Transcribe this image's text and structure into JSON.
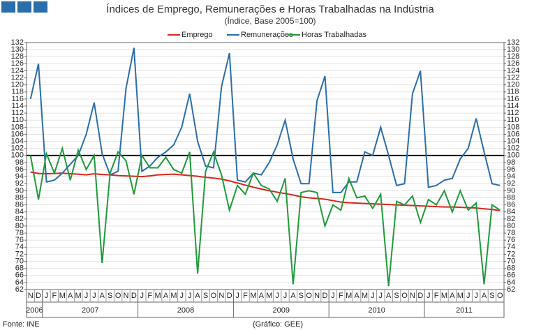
{
  "chart_data": {
    "type": "line",
    "title": "Índices de Emprego, Remunerações e Horas Trabalhadas na Indústria",
    "subtitle": "(Índice, Base 2005=100)",
    "source": "Fonte: INE",
    "credit": "(Gráfico: GEE)",
    "categories": [
      "N",
      "D",
      "J",
      "F",
      "M",
      "A",
      "M",
      "J",
      "J",
      "A",
      "S",
      "O",
      "N",
      "D",
      "J",
      "F",
      "M",
      "A",
      "M",
      "J",
      "J",
      "A",
      "S",
      "O",
      "N",
      "D",
      "J",
      "F",
      "M",
      "A",
      "M",
      "J",
      "J",
      "A",
      "S",
      "O",
      "N",
      "D",
      "J",
      "F",
      "M",
      "A",
      "M",
      "J",
      "J",
      "A",
      "S",
      "O",
      "N",
      "D",
      "J",
      "F",
      "M",
      "A",
      "M",
      "J",
      "J",
      "A",
      "S",
      "O"
    ],
    "year_labels": [
      "2006",
      null,
      "2007",
      null,
      null,
      null,
      null,
      null,
      null,
      null,
      null,
      null,
      null,
      null,
      "2008",
      null,
      null,
      null,
      null,
      null,
      null,
      null,
      null,
      null,
      null,
      null,
      "2009",
      null,
      null,
      null,
      null,
      null,
      null,
      null,
      null,
      null,
      null,
      null,
      "2010",
      null,
      null,
      null,
      null,
      null,
      null,
      null,
      null,
      null,
      null,
      null,
      "2011",
      null,
      null,
      null,
      null,
      null,
      null,
      null,
      null,
      null
    ],
    "series": [
      {
        "name": "Emprego",
        "color": "#d9251c",
        "values": [
          95.3,
          94.9,
          94.8,
          94.9,
          95.0,
          94.8,
          94.7,
          94.5,
          94.8,
          94.6,
          94.5,
          94.3,
          94.2,
          94.1,
          94.0,
          94.2,
          94.5,
          94.6,
          94.7,
          94.5,
          94.3,
          94.1,
          93.8,
          93.6,
          93.3,
          92.8,
          92.2,
          91.6,
          91.0,
          90.5,
          90.0,
          89.6,
          89.2,
          88.8,
          88.3,
          88.0,
          87.8,
          87.6,
          87.2,
          86.8,
          86.6,
          86.5,
          86.4,
          86.3,
          86.2,
          86.1,
          86.0,
          85.9,
          85.8,
          85.7,
          85.6,
          85.5,
          85.4,
          85.4,
          85.3,
          85.2,
          85.1,
          84.9,
          84.7,
          84.4
        ]
      },
      {
        "name": "Remunerações",
        "color": "#2a6eaa",
        "values": [
          116,
          126,
          92.5,
          93,
          95,
          97.5,
          100,
          106,
          115,
          100.5,
          94.5,
          95.5,
          119,
          130.5,
          95.5,
          97,
          99.5,
          101,
          103,
          108,
          117.5,
          104,
          97,
          96.5,
          119.5,
          129,
          93,
          92.5,
          95,
          94.5,
          98,
          103,
          110,
          99,
          92,
          92,
          115.5,
          122.5,
          89.5,
          89.5,
          92.5,
          92.5,
          101,
          100,
          108,
          100,
          91.5,
          92,
          117.5,
          124,
          91,
          91.5,
          93,
          93.5,
          99,
          102,
          110.5,
          101,
          92,
          91.5
        ]
      },
      {
        "name": "Horas Trabalhadas",
        "color": "#1f9a3a",
        "values": [
          100,
          87.5,
          100.5,
          95,
          102,
          93,
          101.5,
          96,
          100,
          69.5,
          95,
          101,
          98.5,
          89,
          100,
          96.5,
          96.5,
          99.5,
          96,
          95,
          101,
          66.5,
          95.5,
          101,
          94.5,
          84.5,
          91.5,
          89,
          95,
          91.5,
          90.5,
          87,
          93.5,
          63.5,
          89.5,
          90,
          89.5,
          80,
          86,
          84.5,
          93.5,
          88,
          88.5,
          85,
          89,
          63,
          87,
          86,
          88.5,
          81,
          87.5,
          86,
          90,
          84,
          90,
          84.5,
          86.5,
          63.5,
          86,
          84.5
        ]
      }
    ],
    "reference_line": 100,
    "ylim": [
      62,
      132
    ],
    "yticks": [
      62,
      64,
      66,
      68,
      70,
      72,
      74,
      76,
      78,
      80,
      82,
      84,
      86,
      88,
      90,
      92,
      94,
      96,
      98,
      100,
      102,
      104,
      106,
      108,
      110,
      112,
      114,
      116,
      118,
      120,
      122,
      124,
      126,
      128,
      130,
      132
    ],
    "grid": true
  }
}
